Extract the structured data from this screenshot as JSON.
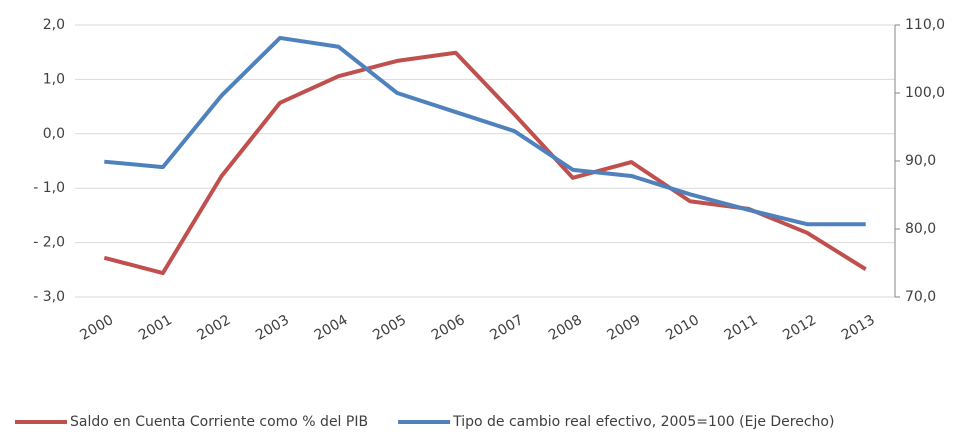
{
  "chart_data": {
    "type": "line",
    "categories": [
      "2000",
      "2001",
      "2002",
      "2003",
      "2004",
      "2005",
      "2006",
      "2007",
      "2008",
      "2009",
      "2010",
      "2011",
      "2012",
      "2013"
    ],
    "series": [
      {
        "name": "Saldo en Cuenta Corriente como % del PIB",
        "color": "#c0504d",
        "values": [
          -2.28,
          -2.56,
          -0.78,
          0.57,
          1.06,
          1.34,
          1.49,
          0.36,
          -0.81,
          -0.52,
          -1.24,
          -1.38,
          -1.82,
          -2.49
        ]
      },
      {
        "name": "Tipo de cambio real efectivo, 2005=100 (Eje Derecho)",
        "color": "#4f81bd",
        "axis": "y2",
        "values": [
          89.9,
          89.1,
          99.6,
          108.1,
          106.8,
          100.0,
          97.2,
          94.4,
          88.7,
          87.8,
          85.1,
          82.8,
          80.7,
          80.7
        ]
      }
    ],
    "ylim": [
      -3,
      2
    ],
    "yticks": [
      {
        "value": -3,
        "label": "- 3,0"
      },
      {
        "value": -2,
        "label": "- 2,0"
      },
      {
        "value": -1,
        "label": "- 1,0"
      },
      {
        "value": 0,
        "label": "0,0"
      },
      {
        "value": 1,
        "label": "1,0"
      },
      {
        "value": 2,
        "label": "2,0"
      }
    ],
    "y2lim": [
      70,
      110
    ],
    "y2ticks": [
      {
        "value": 70,
        "label": "70,0"
      },
      {
        "value": 80,
        "label": "80,0"
      },
      {
        "value": 90,
        "label": "90,0"
      },
      {
        "value": 100,
        "label": "100,0"
      },
      {
        "value": 110,
        "label": "110,0"
      }
    ],
    "grid": true,
    "legend": "bottom"
  }
}
